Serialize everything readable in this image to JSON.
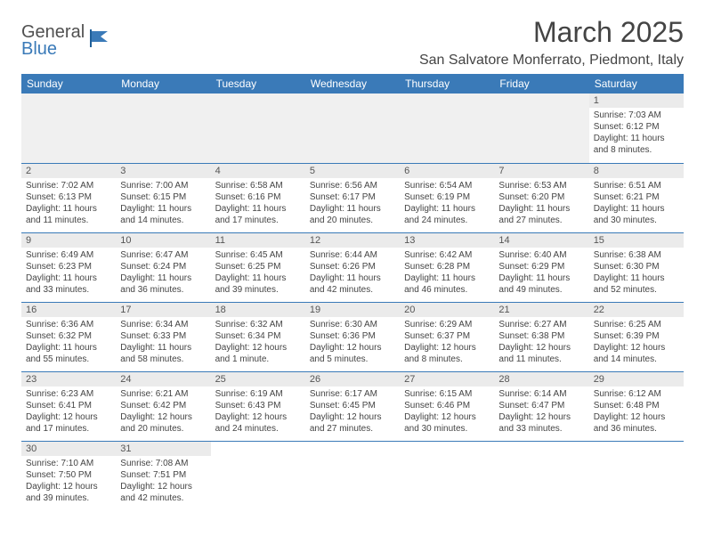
{
  "logo": {
    "general": "General",
    "blue": "Blue"
  },
  "title": "March 2025",
  "location": "San Salvatore Monferrato, Piedmont, Italy",
  "colors": {
    "header_bg": "#3a7ab8",
    "header_text": "#ffffff",
    "daynum_bg": "#ebebeb",
    "border": "#3a7ab8",
    "empty_bg": "#f0f0f0",
    "page_bg": "#ffffff",
    "body_text": "#444444"
  },
  "weekdays": [
    "Sunday",
    "Monday",
    "Tuesday",
    "Wednesday",
    "Thursday",
    "Friday",
    "Saturday"
  ],
  "weeks": [
    [
      null,
      null,
      null,
      null,
      null,
      null,
      {
        "n": "1",
        "sr": "Sunrise: 7:03 AM",
        "ss": "Sunset: 6:12 PM",
        "dl": "Daylight: 11 hours and 8 minutes."
      }
    ],
    [
      {
        "n": "2",
        "sr": "Sunrise: 7:02 AM",
        "ss": "Sunset: 6:13 PM",
        "dl": "Daylight: 11 hours and 11 minutes."
      },
      {
        "n": "3",
        "sr": "Sunrise: 7:00 AM",
        "ss": "Sunset: 6:15 PM",
        "dl": "Daylight: 11 hours and 14 minutes."
      },
      {
        "n": "4",
        "sr": "Sunrise: 6:58 AM",
        "ss": "Sunset: 6:16 PM",
        "dl": "Daylight: 11 hours and 17 minutes."
      },
      {
        "n": "5",
        "sr": "Sunrise: 6:56 AM",
        "ss": "Sunset: 6:17 PM",
        "dl": "Daylight: 11 hours and 20 minutes."
      },
      {
        "n": "6",
        "sr": "Sunrise: 6:54 AM",
        "ss": "Sunset: 6:19 PM",
        "dl": "Daylight: 11 hours and 24 minutes."
      },
      {
        "n": "7",
        "sr": "Sunrise: 6:53 AM",
        "ss": "Sunset: 6:20 PM",
        "dl": "Daylight: 11 hours and 27 minutes."
      },
      {
        "n": "8",
        "sr": "Sunrise: 6:51 AM",
        "ss": "Sunset: 6:21 PM",
        "dl": "Daylight: 11 hours and 30 minutes."
      }
    ],
    [
      {
        "n": "9",
        "sr": "Sunrise: 6:49 AM",
        "ss": "Sunset: 6:23 PM",
        "dl": "Daylight: 11 hours and 33 minutes."
      },
      {
        "n": "10",
        "sr": "Sunrise: 6:47 AM",
        "ss": "Sunset: 6:24 PM",
        "dl": "Daylight: 11 hours and 36 minutes."
      },
      {
        "n": "11",
        "sr": "Sunrise: 6:45 AM",
        "ss": "Sunset: 6:25 PM",
        "dl": "Daylight: 11 hours and 39 minutes."
      },
      {
        "n": "12",
        "sr": "Sunrise: 6:44 AM",
        "ss": "Sunset: 6:26 PM",
        "dl": "Daylight: 11 hours and 42 minutes."
      },
      {
        "n": "13",
        "sr": "Sunrise: 6:42 AM",
        "ss": "Sunset: 6:28 PM",
        "dl": "Daylight: 11 hours and 46 minutes."
      },
      {
        "n": "14",
        "sr": "Sunrise: 6:40 AM",
        "ss": "Sunset: 6:29 PM",
        "dl": "Daylight: 11 hours and 49 minutes."
      },
      {
        "n": "15",
        "sr": "Sunrise: 6:38 AM",
        "ss": "Sunset: 6:30 PM",
        "dl": "Daylight: 11 hours and 52 minutes."
      }
    ],
    [
      {
        "n": "16",
        "sr": "Sunrise: 6:36 AM",
        "ss": "Sunset: 6:32 PM",
        "dl": "Daylight: 11 hours and 55 minutes."
      },
      {
        "n": "17",
        "sr": "Sunrise: 6:34 AM",
        "ss": "Sunset: 6:33 PM",
        "dl": "Daylight: 11 hours and 58 minutes."
      },
      {
        "n": "18",
        "sr": "Sunrise: 6:32 AM",
        "ss": "Sunset: 6:34 PM",
        "dl": "Daylight: 12 hours and 1 minute."
      },
      {
        "n": "19",
        "sr": "Sunrise: 6:30 AM",
        "ss": "Sunset: 6:36 PM",
        "dl": "Daylight: 12 hours and 5 minutes."
      },
      {
        "n": "20",
        "sr": "Sunrise: 6:29 AM",
        "ss": "Sunset: 6:37 PM",
        "dl": "Daylight: 12 hours and 8 minutes."
      },
      {
        "n": "21",
        "sr": "Sunrise: 6:27 AM",
        "ss": "Sunset: 6:38 PM",
        "dl": "Daylight: 12 hours and 11 minutes."
      },
      {
        "n": "22",
        "sr": "Sunrise: 6:25 AM",
        "ss": "Sunset: 6:39 PM",
        "dl": "Daylight: 12 hours and 14 minutes."
      }
    ],
    [
      {
        "n": "23",
        "sr": "Sunrise: 6:23 AM",
        "ss": "Sunset: 6:41 PM",
        "dl": "Daylight: 12 hours and 17 minutes."
      },
      {
        "n": "24",
        "sr": "Sunrise: 6:21 AM",
        "ss": "Sunset: 6:42 PM",
        "dl": "Daylight: 12 hours and 20 minutes."
      },
      {
        "n": "25",
        "sr": "Sunrise: 6:19 AM",
        "ss": "Sunset: 6:43 PM",
        "dl": "Daylight: 12 hours and 24 minutes."
      },
      {
        "n": "26",
        "sr": "Sunrise: 6:17 AM",
        "ss": "Sunset: 6:45 PM",
        "dl": "Daylight: 12 hours and 27 minutes."
      },
      {
        "n": "27",
        "sr": "Sunrise: 6:15 AM",
        "ss": "Sunset: 6:46 PM",
        "dl": "Daylight: 12 hours and 30 minutes."
      },
      {
        "n": "28",
        "sr": "Sunrise: 6:14 AM",
        "ss": "Sunset: 6:47 PM",
        "dl": "Daylight: 12 hours and 33 minutes."
      },
      {
        "n": "29",
        "sr": "Sunrise: 6:12 AM",
        "ss": "Sunset: 6:48 PM",
        "dl": "Daylight: 12 hours and 36 minutes."
      }
    ],
    [
      {
        "n": "30",
        "sr": "Sunrise: 7:10 AM",
        "ss": "Sunset: 7:50 PM",
        "dl": "Daylight: 12 hours and 39 minutes."
      },
      {
        "n": "31",
        "sr": "Sunrise: 7:08 AM",
        "ss": "Sunset: 7:51 PM",
        "dl": "Daylight: 12 hours and 42 minutes."
      },
      null,
      null,
      null,
      null,
      null
    ]
  ]
}
